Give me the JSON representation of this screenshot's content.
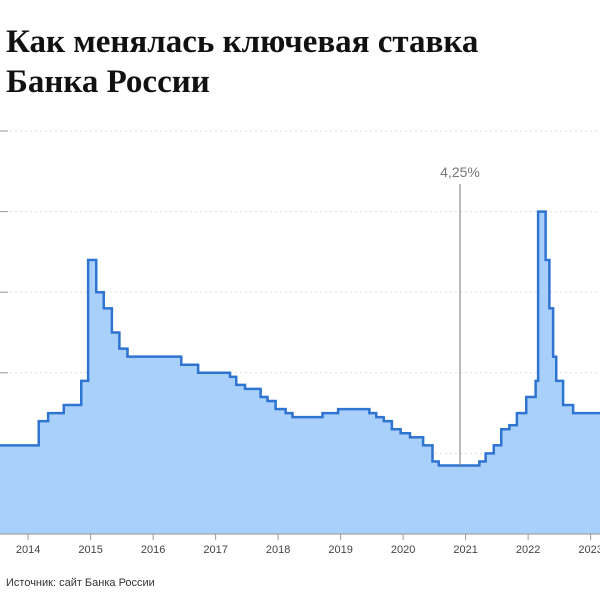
{
  "chart_data": {
    "type": "step-area",
    "title": [
      "Как менялась ключевая ставка",
      "Банка России"
    ],
    "source": "Источник: сайт Банка России",
    "x": [
      2013.55,
      2014.17,
      2014.32,
      2014.57,
      2014.85,
      2014.96,
      2015.09,
      2015.21,
      2015.34,
      2015.46,
      2015.59,
      2016.45,
      2016.72,
      2017.23,
      2017.33,
      2017.47,
      2017.72,
      2017.83,
      2017.96,
      2018.12,
      2018.23,
      2018.71,
      2018.96,
      2019.46,
      2019.57,
      2019.69,
      2019.82,
      2019.96,
      2020.11,
      2020.32,
      2020.47,
      2020.57,
      2021.22,
      2021.32,
      2021.45,
      2021.57,
      2021.7,
      2021.82,
      2021.97,
      2022.12,
      2022.16,
      2022.28,
      2022.34,
      2022.4,
      2022.45,
      2022.56,
      2022.72,
      2023.15
    ],
    "values": [
      5.5,
      7,
      7.5,
      8,
      9.5,
      17,
      15,
      14,
      12.5,
      11.5,
      11,
      10.5,
      10,
      9.75,
      9.25,
      9,
      8.5,
      8.25,
      7.75,
      7.5,
      7.25,
      7.5,
      7.75,
      7.5,
      7.25,
      7,
      6.5,
      6.25,
      6,
      5.5,
      4.5,
      4.25,
      4.5,
      5,
      5.5,
      6.5,
      6.75,
      7.5,
      8.5,
      9.5,
      20,
      17,
      14,
      11,
      9.5,
      8,
      7.5,
      7.5
    ],
    "color": "#2f74d0",
    "fill": "#a9d0fa",
    "xlim": [
      2013.55,
      2023.15
    ],
    "xticks": [
      2014,
      2015,
      2016,
      2017,
      2018,
      2019,
      2020,
      2021,
      2022,
      2023
    ],
    "ylim": [
      0,
      25
    ],
    "yticks": [
      0,
      5,
      10,
      15,
      20,
      25
    ],
    "grid": true,
    "annotations": [
      {
        "text": "4,25%",
        "x": 2020.91,
        "y": 4.25
      }
    ]
  }
}
